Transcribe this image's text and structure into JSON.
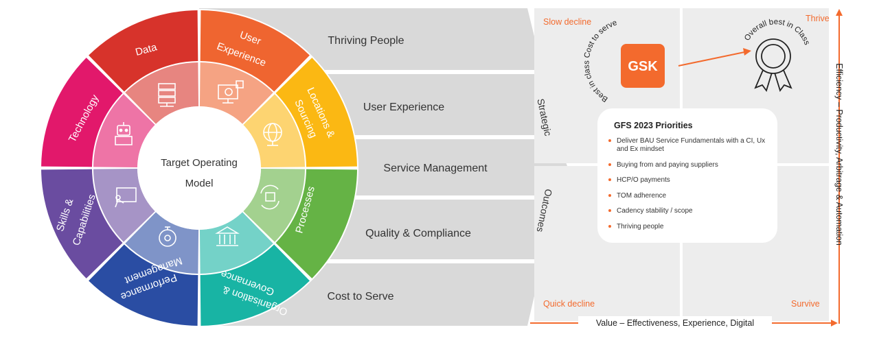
{
  "wheel": {
    "center_title_line1": "Target Operating",
    "center_title_line2": "Model",
    "segments": {
      "data": "Data",
      "user_experience_line1": "User",
      "user_experience_line2": "Experience",
      "locations_line1": "Locations &",
      "locations_line2": "Sourcing",
      "processes": "Processes",
      "org_line1": "Organisation &",
      "org_line2": "Governance",
      "perf_line1": "Performance",
      "perf_line2": "Management",
      "skills_line1": "Skills &",
      "skills_line2": "Capabilities",
      "technology": "Technology"
    },
    "colors": {
      "data": "#d7332b",
      "user_experience": "#ef6530",
      "locations": "#fbb813",
      "processes": "#65b345",
      "org": "#18b4a4",
      "perf": "#2a4da3",
      "skills": "#6a4ca0",
      "technology": "#e2186b"
    }
  },
  "outcome_bands": [
    "Thriving People",
    "User Experience",
    "Service Management",
    "Quality & Compliance",
    "Cost to Serve"
  ],
  "arrow_label_top": "Strategic",
  "arrow_label_bottom": "Outcomes",
  "matrix": {
    "top_left": "Slow decline",
    "top_right": "Thrive",
    "bottom_left": "Quick decline",
    "bottom_right": "Survive",
    "x_axis": "Value – Effectiveness, Experience, Digital",
    "y_axis": "Efficiency – Productivity, Arbitrage & Automation",
    "accent_color": "#f36a2d"
  },
  "gsk": {
    "logo_text": "GSK",
    "arc_label": "Best in class Cost to serve",
    "ribbon_label": "Overall best in Class"
  },
  "priorities": {
    "title": "GFS 2023  Priorities",
    "items": [
      "Deliver BAU Service Fundamentals with a CI, Ux and Ex mindset",
      "Buying from and paying suppliers",
      "HCP/O payments",
      "TOM adherence",
      "Cadency stability / scope",
      "Thriving people"
    ]
  }
}
